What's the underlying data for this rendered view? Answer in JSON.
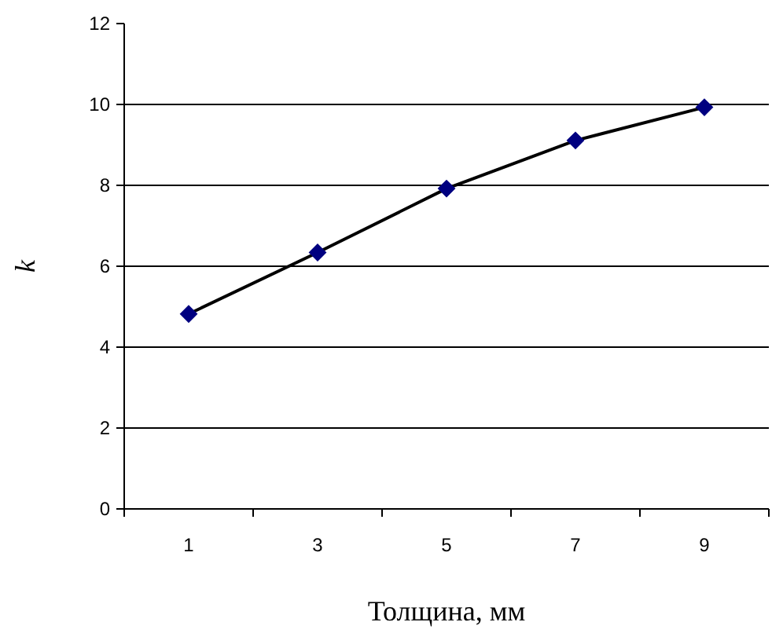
{
  "chart_data": {
    "type": "line",
    "xlabel": "Толщина, мм",
    "ylabel": "k",
    "categories": [
      "1",
      "3",
      "5",
      "7",
      "9"
    ],
    "series": [
      {
        "color": "#000080",
        "values": [
          4.82,
          6.34,
          7.92,
          9.11,
          9.93
        ]
      }
    ],
    "ylim": [
      0,
      12
    ],
    "yticks": [
      0,
      2,
      4,
      6,
      8,
      10,
      12
    ],
    "grid": "y",
    "marker": "diamond",
    "line_style": "solid"
  }
}
